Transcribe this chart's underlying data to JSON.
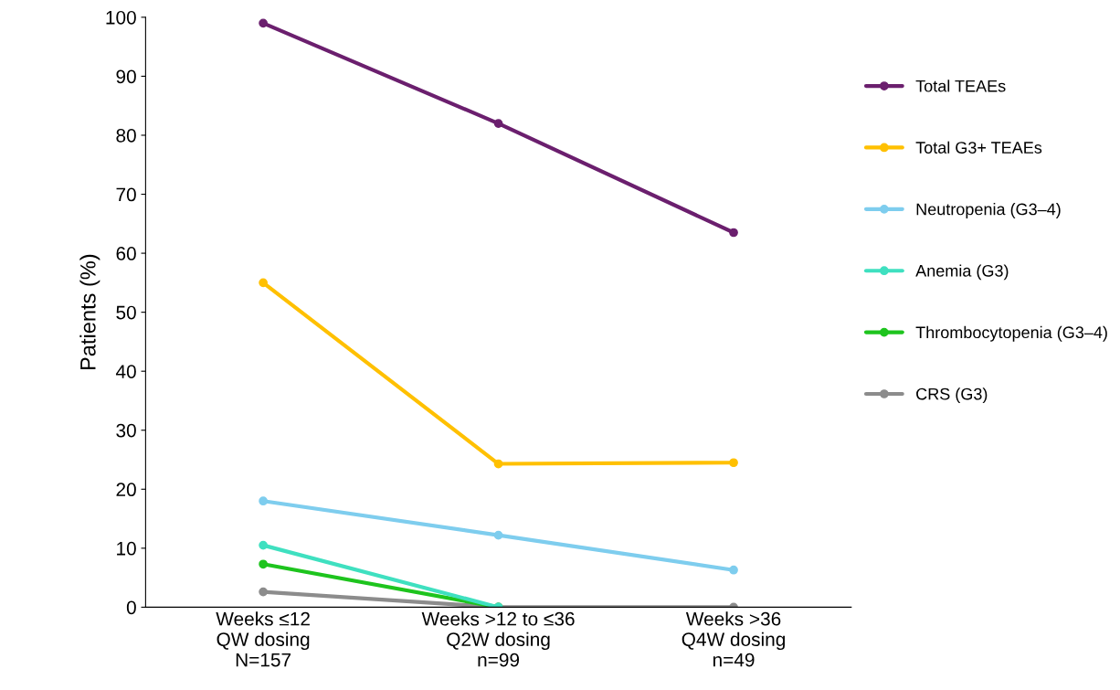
{
  "chart_data": {
    "type": "line",
    "ylabel": "Patients (%)",
    "categories": [
      "Weeks ≤12\nQW dosing\nN=157",
      "Weeks >12 to ≤36\nQ2W dosing\nn=99",
      "Weeks >36\nQ4W dosing\nn=49"
    ],
    "series": [
      {
        "name": "Total TEAEs",
        "color": "#6b1f6e",
        "values": [
          99,
          82,
          63.5
        ]
      },
      {
        "name": "Total G3+ TEAEs",
        "color": "#ffc000",
        "values": [
          55,
          24.3,
          24.5
        ]
      },
      {
        "name": "Neutropenia (G3–4)",
        "color": "#7ecdee",
        "values": [
          18,
          12.2,
          6.3
        ]
      },
      {
        "name": "Anemia (G3)",
        "color": "#3fe0c0",
        "values": [
          10.5,
          0,
          null
        ]
      },
      {
        "name": "Thrombocytopenia (G3–4)",
        "color": "#1ec41e",
        "values": [
          7.3,
          0,
          null
        ]
      },
      {
        "name": "CRS (G3)",
        "color": "#8c8c8c",
        "values": [
          2.6,
          0,
          0
        ]
      }
    ],
    "ylim": [
      0,
      100
    ],
    "yticks": [
      0,
      10,
      20,
      30,
      40,
      50,
      60,
      70,
      80,
      90,
      100
    ],
    "grid": false,
    "legend": "right",
    "marker": "circle",
    "line_style": "solid"
  }
}
